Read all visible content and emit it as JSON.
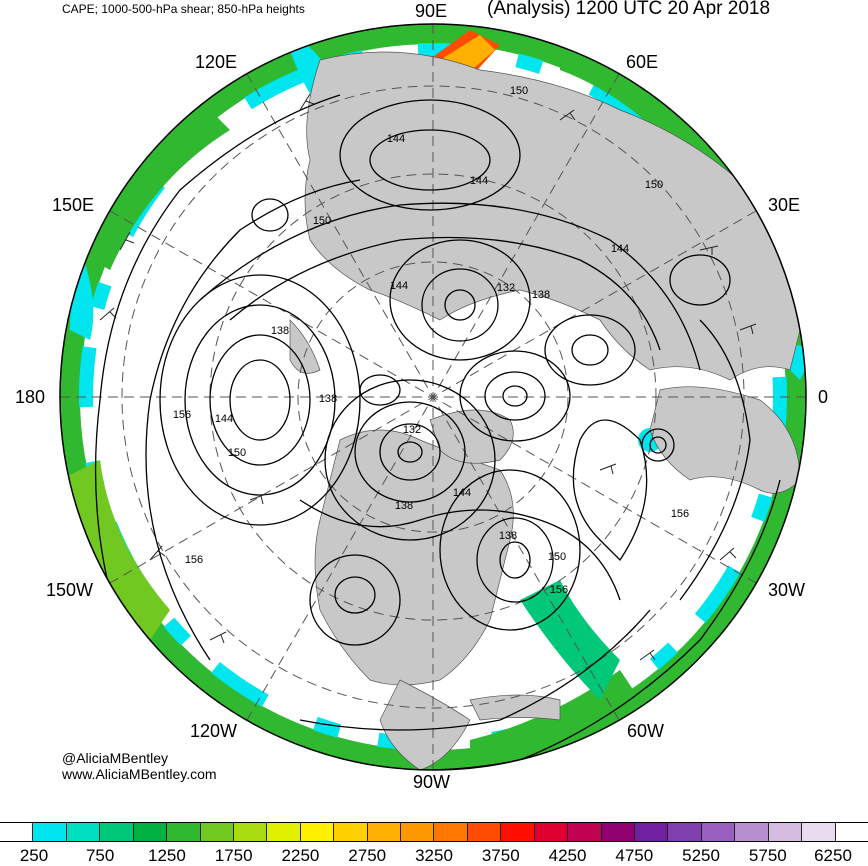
{
  "header": {
    "product": "CAPE; 1000-500-hPa shear; 850-hPa heights",
    "valid_time": "(Analysis) 1200 UTC 20 Apr 2018"
  },
  "longitude_labels": {
    "lon_90e": "90E",
    "lon_120e": "120E",
    "lon_60e": "60E",
    "lon_150e": "150E",
    "lon_30e": "30E",
    "lon_180": "180",
    "lon_0": "0",
    "lon_150w": "150W",
    "lon_30w": "30W",
    "lon_120w": "120W",
    "lon_60w": "60W",
    "lon_90w": "90W"
  },
  "contour_labels": [
    {
      "id": "c150-a",
      "text": "150"
    },
    {
      "id": "c144-a",
      "text": "144"
    },
    {
      "id": "c144-b",
      "text": "144"
    },
    {
      "id": "c150-b",
      "text": "150"
    },
    {
      "id": "c150-c",
      "text": "150"
    },
    {
      "id": "c144-c",
      "text": "144"
    },
    {
      "id": "c144-d",
      "text": "144"
    },
    {
      "id": "c132-a",
      "text": "132"
    },
    {
      "id": "c138-a",
      "text": "138"
    },
    {
      "id": "c138-b",
      "text": "138"
    },
    {
      "id": "c156-a",
      "text": "156"
    },
    {
      "id": "c144-e",
      "text": "144"
    },
    {
      "id": "c150-d",
      "text": "150"
    },
    {
      "id": "c138-c",
      "text": "138"
    },
    {
      "id": "c132-b",
      "text": "132"
    },
    {
      "id": "c144-f",
      "text": "144"
    },
    {
      "id": "c138-d",
      "text": "138"
    },
    {
      "id": "c138-e",
      "text": "138"
    },
    {
      "id": "c150-e",
      "text": "150"
    },
    {
      "id": "c156-b",
      "text": "156"
    },
    {
      "id": "c156-c",
      "text": "156"
    },
    {
      "id": "c156-d",
      "text": "156"
    }
  ],
  "credits": {
    "handle": "@AliciaMBentley",
    "website": "www.AliciaMBentley.com"
  },
  "colorbar": {
    "colors": [
      "#ffffff",
      "#00e5ee",
      "#00e0c0",
      "#00c878",
      "#00b040",
      "#30b830",
      "#70c820",
      "#a8dc10",
      "#e0f000",
      "#fff000",
      "#ffd000",
      "#ffb000",
      "#ff9800",
      "#ff7800",
      "#ff4c00",
      "#ff1000",
      "#e00030",
      "#c00050",
      "#900070",
      "#7020a0",
      "#8040b0",
      "#9a60c0",
      "#b890d0",
      "#d4bce0",
      "#e8dcf0",
      "#ffffff"
    ],
    "labels": [
      "250",
      "750",
      "1250",
      "1750",
      "2250",
      "2750",
      "3250",
      "3750",
      "4250",
      "4750",
      "5250",
      "5750",
      "6250"
    ]
  },
  "map_colors": {
    "ocean": "#ffffff",
    "land": "#c8c8c8",
    "cape_low": "#00e5ee",
    "cape_mid": "#30b830",
    "cape_high": "#a8dc10",
    "cape_hot": "#ff4c00",
    "contour": "#000000"
  }
}
